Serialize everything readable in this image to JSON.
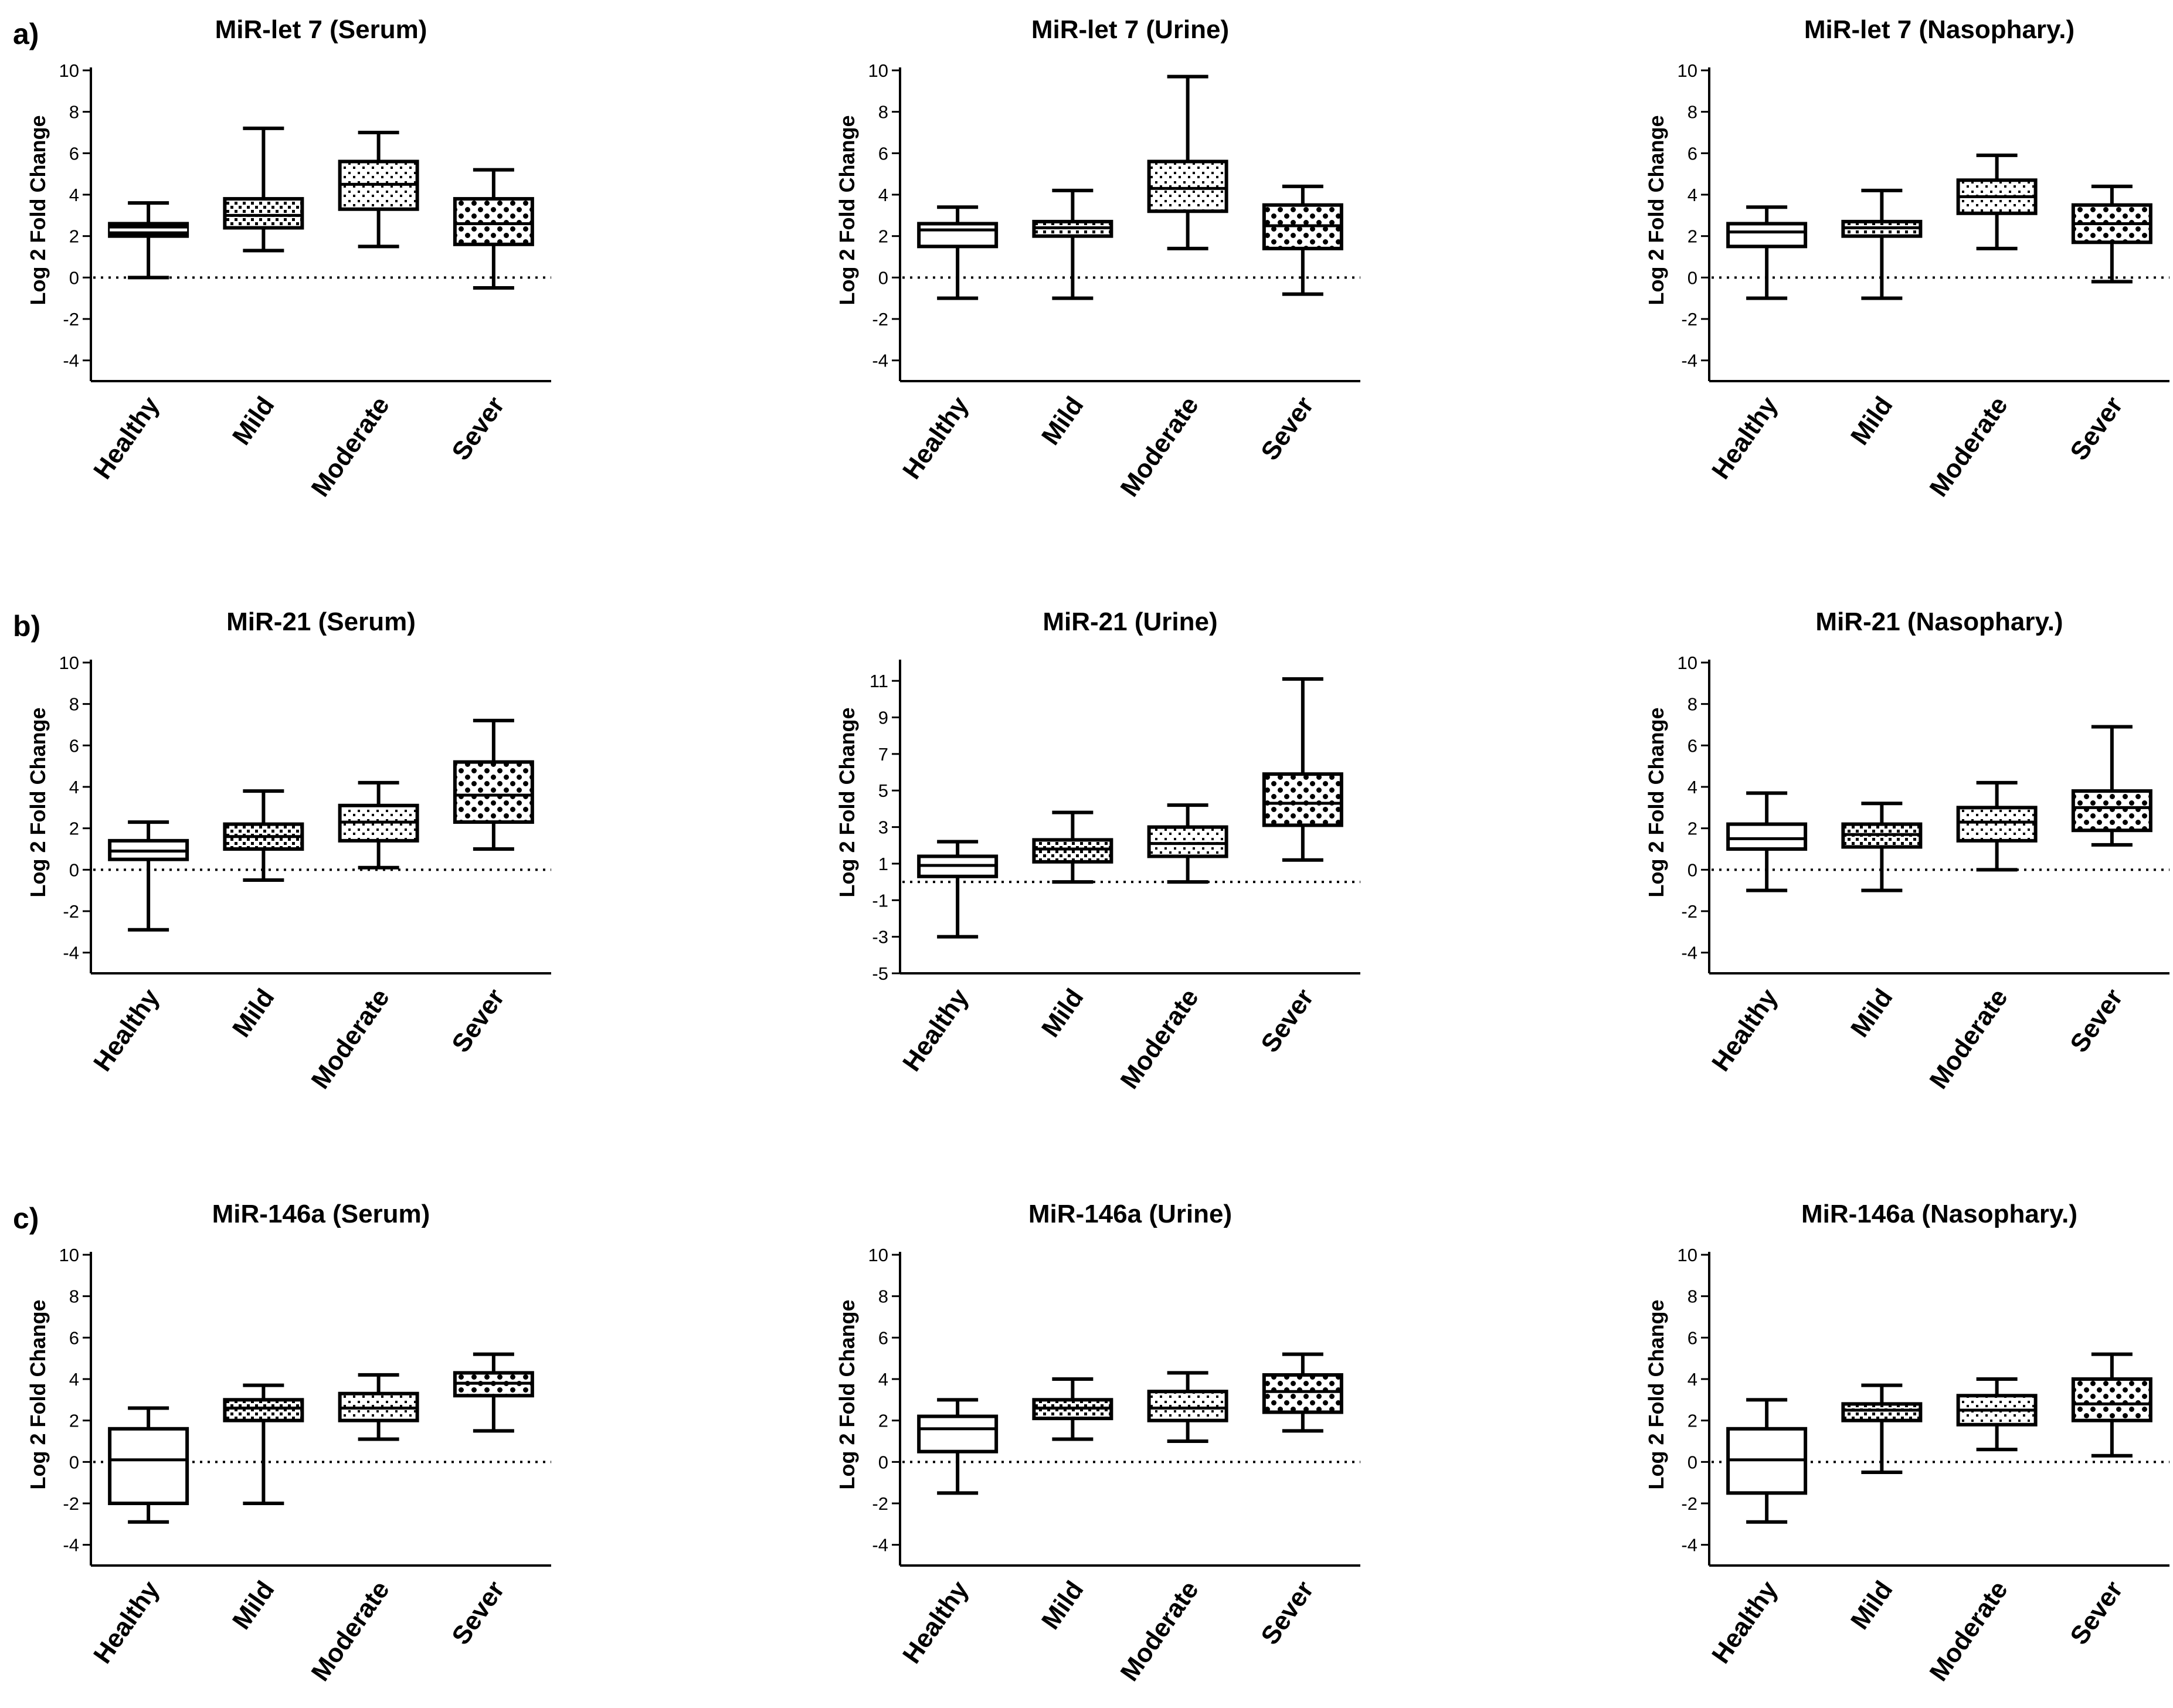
{
  "row_labels": [
    "a)",
    "b)",
    "c)"
  ],
  "colors": {
    "ink": "#000000",
    "background": "#ffffff"
  },
  "chart_data": [
    {
      "type": "boxplot",
      "row": "a)",
      "title": "MiR-let 7 (Serum)",
      "ylabel": "Log 2 Fold Change",
      "categories": [
        "Healthy",
        "Mild",
        "Moderate",
        "Sever"
      ],
      "ylim": [
        -5,
        10
      ],
      "yticks": [
        -4,
        -2,
        0,
        2,
        4,
        6,
        8,
        10
      ],
      "reference_line": 0,
      "boxes": [
        {
          "category": "Healthy",
          "min": 0.0,
          "q1": 2.0,
          "median": 2.3,
          "q3": 2.6,
          "max": 3.6
        },
        {
          "category": "Mild",
          "min": 1.3,
          "q1": 2.4,
          "median": 3.0,
          "q3": 3.8,
          "max": 7.2
        },
        {
          "category": "Moderate",
          "min": 1.5,
          "q1": 3.3,
          "median": 4.5,
          "q3": 5.6,
          "max": 7.0
        },
        {
          "category": "Sever",
          "min": -0.5,
          "q1": 1.6,
          "median": 2.6,
          "q3": 3.8,
          "max": 5.2
        }
      ]
    },
    {
      "type": "boxplot",
      "row": "a)",
      "title": "MiR-let 7 (Urine)",
      "ylabel": "Log 2 Fold Change",
      "categories": [
        "Healthy",
        "Mild",
        "Moderate",
        "Sever"
      ],
      "ylim": [
        -5,
        10
      ],
      "yticks": [
        -4,
        -2,
        0,
        2,
        4,
        6,
        8,
        10
      ],
      "reference_line": 0,
      "boxes": [
        {
          "category": "Healthy",
          "min": -1.0,
          "q1": 1.5,
          "median": 2.3,
          "q3": 2.6,
          "max": 3.4
        },
        {
          "category": "Mild",
          "min": -1.0,
          "q1": 2.0,
          "median": 2.4,
          "q3": 2.7,
          "max": 4.2
        },
        {
          "category": "Moderate",
          "min": 1.4,
          "q1": 3.2,
          "median": 4.3,
          "q3": 5.6,
          "max": 9.7
        },
        {
          "category": "Sever",
          "min": -0.8,
          "q1": 1.4,
          "median": 2.5,
          "q3": 3.5,
          "max": 4.4
        }
      ]
    },
    {
      "type": "boxplot",
      "row": "a)",
      "title": "MiR-let 7 (Nasophary.)",
      "ylabel": "Log 2 Fold Change",
      "categories": [
        "Healthy",
        "Mild",
        "Moderate",
        "Sever"
      ],
      "ylim": [
        -5,
        10
      ],
      "yticks": [
        -4,
        -2,
        0,
        2,
        4,
        6,
        8,
        10
      ],
      "reference_line": 0,
      "boxes": [
        {
          "category": "Healthy",
          "min": -1.0,
          "q1": 1.5,
          "median": 2.2,
          "q3": 2.6,
          "max": 3.4
        },
        {
          "category": "Mild",
          "min": -1.0,
          "q1": 2.0,
          "median": 2.4,
          "q3": 2.7,
          "max": 4.2
        },
        {
          "category": "Moderate",
          "min": 1.4,
          "q1": 3.1,
          "median": 3.9,
          "q3": 4.7,
          "max": 5.9
        },
        {
          "category": "Sever",
          "min": -0.2,
          "q1": 1.7,
          "median": 2.6,
          "q3": 3.5,
          "max": 4.4
        }
      ]
    },
    {
      "type": "boxplot",
      "row": "b)",
      "title": "MiR-21 (Serum)",
      "ylabel": "Log 2 Fold Change",
      "categories": [
        "Healthy",
        "Mild",
        "Moderate",
        "Sever"
      ],
      "ylim": [
        -5,
        10
      ],
      "yticks": [
        -4,
        -2,
        0,
        2,
        4,
        6,
        8,
        10
      ],
      "reference_line": 0,
      "boxes": [
        {
          "category": "Healthy",
          "min": -2.9,
          "q1": 0.5,
          "median": 0.9,
          "q3": 1.4,
          "max": 2.3
        },
        {
          "category": "Mild",
          "min": -0.5,
          "q1": 1.0,
          "median": 1.6,
          "q3": 2.2,
          "max": 3.8
        },
        {
          "category": "Moderate",
          "min": 0.1,
          "q1": 1.4,
          "median": 2.3,
          "q3": 3.1,
          "max": 4.2
        },
        {
          "category": "Sever",
          "min": 1.0,
          "q1": 2.3,
          "median": 3.6,
          "q3": 5.2,
          "max": 7.2
        }
      ]
    },
    {
      "type": "boxplot",
      "row": "b)",
      "title": "MiR-21 (Urine)",
      "ylabel": "Log 2 Fold Change",
      "categories": [
        "Healthy",
        "Mild",
        "Moderate",
        "Sever"
      ],
      "ylim": [
        -5,
        12
      ],
      "yticks": [
        -5,
        -3,
        -1,
        1,
        3,
        5,
        7,
        9,
        11
      ],
      "reference_line": 0,
      "boxes": [
        {
          "category": "Healthy",
          "min": -3.0,
          "q1": 0.3,
          "median": 0.9,
          "q3": 1.4,
          "max": 2.2
        },
        {
          "category": "Mild",
          "min": 0.0,
          "q1": 1.1,
          "median": 1.8,
          "q3": 2.3,
          "max": 3.8
        },
        {
          "category": "Moderate",
          "min": 0.0,
          "q1": 1.4,
          "median": 2.1,
          "q3": 3.0,
          "max": 4.2
        },
        {
          "category": "Sever",
          "min": 1.2,
          "q1": 3.1,
          "median": 4.3,
          "q3": 5.9,
          "max": 11.1
        }
      ]
    },
    {
      "type": "boxplot",
      "row": "b)",
      "title": "MiR-21 (Nasophary.)",
      "ylabel": "Log 2 Fold Change",
      "categories": [
        "Healthy",
        "Mild",
        "Moderate",
        "Sever"
      ],
      "ylim": [
        -5,
        10
      ],
      "yticks": [
        -4,
        -2,
        0,
        2,
        4,
        6,
        8,
        10
      ],
      "reference_line": 0,
      "boxes": [
        {
          "category": "Healthy",
          "min": -1.0,
          "q1": 1.0,
          "median": 1.5,
          "q3": 2.2,
          "max": 3.7
        },
        {
          "category": "Mild",
          "min": -1.0,
          "q1": 1.1,
          "median": 1.7,
          "q3": 2.2,
          "max": 3.2
        },
        {
          "category": "Moderate",
          "min": 0.0,
          "q1": 1.4,
          "median": 2.3,
          "q3": 3.0,
          "max": 4.2
        },
        {
          "category": "Sever",
          "min": 1.2,
          "q1": 1.9,
          "median": 3.0,
          "q3": 3.8,
          "max": 6.9
        }
      ]
    },
    {
      "type": "boxplot",
      "row": "c)",
      "title": "MiR-146a (Serum)",
      "ylabel": "Log 2 Fold Change",
      "categories": [
        "Healthy",
        "Mild",
        "Moderate",
        "Sever"
      ],
      "ylim": [
        -5,
        10
      ],
      "yticks": [
        -4,
        -2,
        0,
        2,
        4,
        6,
        8,
        10
      ],
      "reference_line": 0,
      "boxes": [
        {
          "category": "Healthy",
          "min": -2.9,
          "q1": -2.0,
          "median": 0.1,
          "q3": 1.6,
          "max": 2.6
        },
        {
          "category": "Mild",
          "min": -2.0,
          "q1": 2.0,
          "median": 2.6,
          "q3": 3.0,
          "max": 3.7
        },
        {
          "category": "Moderate",
          "min": 1.1,
          "q1": 2.0,
          "median": 2.6,
          "q3": 3.3,
          "max": 4.2
        },
        {
          "category": "Sever",
          "min": 1.5,
          "q1": 3.2,
          "median": 3.8,
          "q3": 4.3,
          "max": 5.2
        }
      ]
    },
    {
      "type": "boxplot",
      "row": "c)",
      "title": "MiR-146a (Urine)",
      "ylabel": "Log 2 Fold Change",
      "categories": [
        "Healthy",
        "Mild",
        "Moderate",
        "Sever"
      ],
      "ylim": [
        -5,
        10
      ],
      "yticks": [
        -4,
        -2,
        0,
        2,
        4,
        6,
        8,
        10
      ],
      "reference_line": 0,
      "boxes": [
        {
          "category": "Healthy",
          "min": -1.5,
          "q1": 0.5,
          "median": 1.6,
          "q3": 2.2,
          "max": 3.0
        },
        {
          "category": "Mild",
          "min": 1.1,
          "q1": 2.1,
          "median": 2.6,
          "q3": 3.0,
          "max": 4.0
        },
        {
          "category": "Moderate",
          "min": 1.0,
          "q1": 2.0,
          "median": 2.6,
          "q3": 3.4,
          "max": 4.3
        },
        {
          "category": "Sever",
          "min": 1.5,
          "q1": 2.4,
          "median": 3.4,
          "q3": 4.2,
          "max": 5.2
        }
      ]
    },
    {
      "type": "boxplot",
      "row": "c)",
      "title": "MiR-146a (Nasophary.)",
      "ylabel": "Log 2 Fold Change",
      "categories": [
        "Healthy",
        "Mild",
        "Moderate",
        "Sever"
      ],
      "ylim": [
        -5,
        10
      ],
      "yticks": [
        -4,
        -2,
        0,
        2,
        4,
        6,
        8,
        10
      ],
      "reference_line": 0,
      "boxes": [
        {
          "category": "Healthy",
          "min": -2.9,
          "q1": -1.5,
          "median": 0.1,
          "q3": 1.6,
          "max": 3.0
        },
        {
          "category": "Mild",
          "min": -0.5,
          "q1": 2.0,
          "median": 2.5,
          "q3": 2.8,
          "max": 3.7
        },
        {
          "category": "Moderate",
          "min": 0.6,
          "q1": 1.8,
          "median": 2.5,
          "q3": 3.2,
          "max": 4.0
        },
        {
          "category": "Sever",
          "min": 0.3,
          "q1": 2.0,
          "median": 2.8,
          "q3": 4.0,
          "max": 5.2
        }
      ]
    }
  ]
}
